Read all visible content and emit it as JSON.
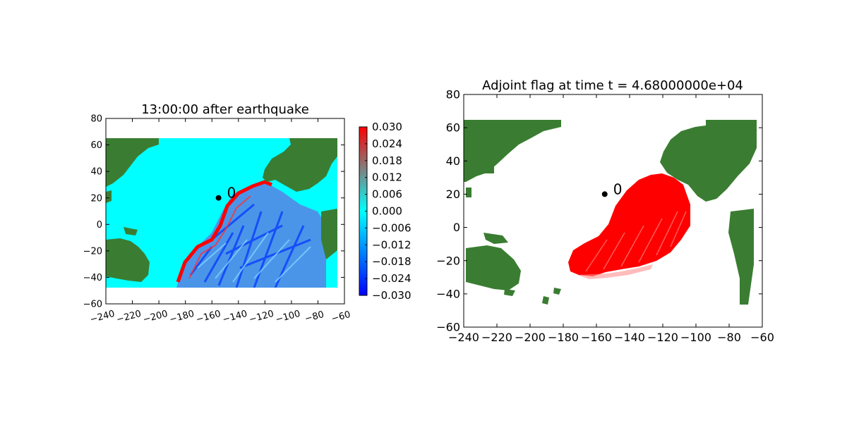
{
  "colors": {
    "land": "#3a7d32",
    "land_edge": "#7aa61f",
    "ocean_left": "#00ffff",
    "adjoint_flag": "#ff0000",
    "gauge": "#000000"
  },
  "chart_data": [
    {
      "type": "heatmap",
      "title": "13:00:00 after earthquake",
      "xlim": [
        -240,
        -60
      ],
      "ylim": [
        -60,
        80
      ],
      "xticks": [
        -240,
        -220,
        -200,
        -180,
        -160,
        -140,
        -120,
        -100,
        -80,
        -60
      ],
      "yticks": [
        -60,
        -40,
        -20,
        0,
        20,
        40,
        60,
        80
      ],
      "colorbar": {
        "colormap": "blue-cyan-red",
        "range": [
          -0.03,
          0.03
        ],
        "ticks": [
          "0.030",
          "0.024",
          "0.018",
          "0.012",
          "0.006",
          "0.000",
          "−0.006",
          "−0.012",
          "−0.018",
          "−0.024",
          "−0.030"
        ]
      },
      "gauge": {
        "label": "0",
        "lon": -155,
        "lat": 20
      }
    },
    {
      "type": "heatmap",
      "title": "Adjoint flag at time t = 4.68000000e+04",
      "xlim": [
        -240,
        -60
      ],
      "ylim": [
        -60,
        80
      ],
      "xticks": [
        -240,
        -220,
        -200,
        -180,
        -160,
        -140,
        -120,
        -100,
        -80,
        -60
      ],
      "yticks": [
        -60,
        -40,
        -20,
        0,
        20,
        40,
        60,
        80
      ],
      "gauge": {
        "label": "0",
        "lon": -155,
        "lat": 20
      }
    }
  ]
}
